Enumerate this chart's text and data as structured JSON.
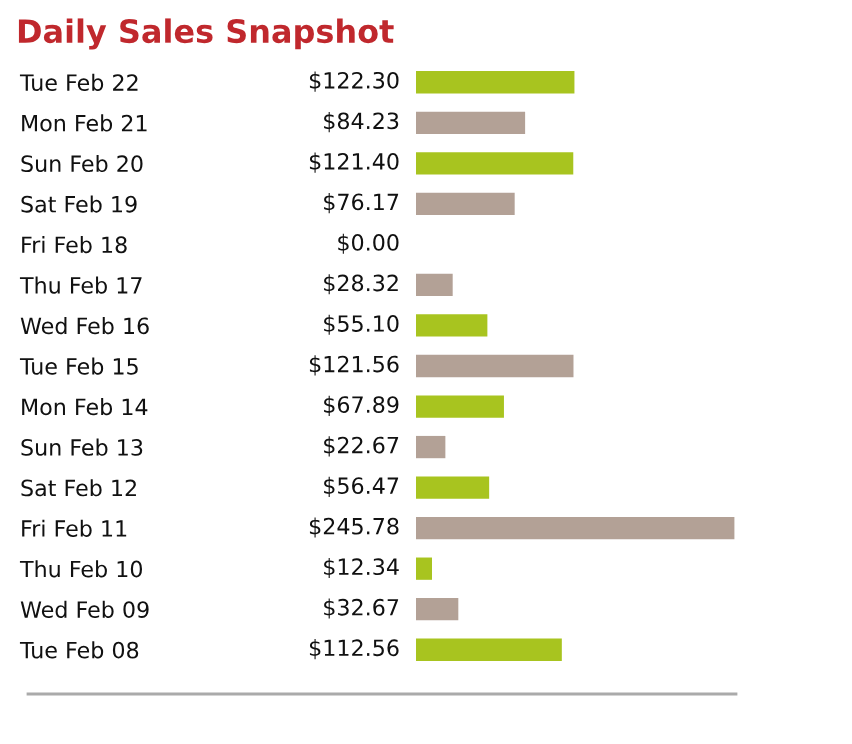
{
  "chart_data": {
    "type": "bar",
    "orientation": "horizontal",
    "title": "Daily Sales Snapshot",
    "categories": [
      "Tue Feb 22",
      "Mon Feb 21",
      "Sun Feb 20",
      "Sat Feb 19",
      "Fri Feb 18",
      "Thu Feb 17",
      "Wed Feb 16",
      "Tue Feb 15",
      "Mon Feb 14",
      "Sun Feb 13",
      "Sat Feb 12",
      "Fri Feb 11",
      "Thu Feb 10",
      "Wed Feb 09",
      "Tue Feb 08"
    ],
    "values": [
      122.3,
      84.23,
      121.4,
      76.17,
      0.0,
      28.32,
      55.1,
      121.56,
      67.89,
      22.67,
      56.47,
      245.78,
      12.34,
      32.67,
      112.56
    ],
    "value_labels": [
      "$122.30",
      "$84.23",
      "$121.40",
      "$76.17",
      "$0.00",
      "$28.32",
      "$55.10",
      "$121.56",
      "$67.89",
      "$22.67",
      "$56.47",
      "$245.78",
      "$12.34",
      "$32.67",
      "$112.56"
    ],
    "colors": [
      "#a8c41f",
      "#b3a196",
      "#a8c41f",
      "#b3a196",
      "#a8c41f",
      "#b3a196",
      "#a8c41f",
      "#b3a196",
      "#a8c41f",
      "#b3a196",
      "#a8c41f",
      "#b3a196",
      "#a8c41f",
      "#b3a196",
      "#a8c41f"
    ],
    "tick_labels": "y"
  }
}
